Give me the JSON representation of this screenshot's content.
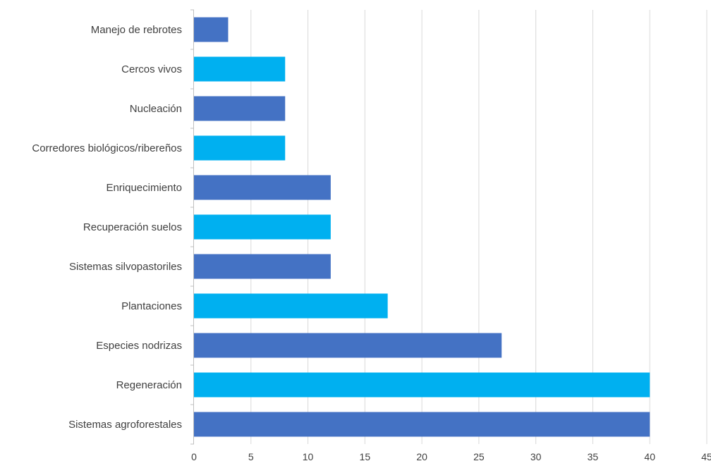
{
  "chart_data": {
    "type": "bar",
    "orientation": "horizontal",
    "categories": [
      "Manejo de rebrotes",
      "Cercos vivos",
      "Nucleación",
      "Corredores biológicos/ribereños",
      "Enriquecimiento",
      "Recuperación suelos",
      "Sistemas silvopastoriles",
      "Plantaciones",
      "Especies nodrizas",
      "Regeneración",
      "Sistemas agroforestales"
    ],
    "values": [
      3,
      8,
      8,
      8,
      12,
      12,
      12,
      17,
      27,
      40,
      40
    ],
    "xlim": [
      0,
      45
    ],
    "xticks": [
      "0",
      "5",
      "10",
      "15",
      "20",
      "25",
      "30",
      "35",
      "40",
      "45"
    ],
    "grid": "vertical",
    "colors": {
      "dark_bar": "#4472C4",
      "light_bar": "#00B0F0",
      "grid": "#D9D9D9",
      "axis": "#BFBFBF",
      "text": "#404040"
    }
  }
}
